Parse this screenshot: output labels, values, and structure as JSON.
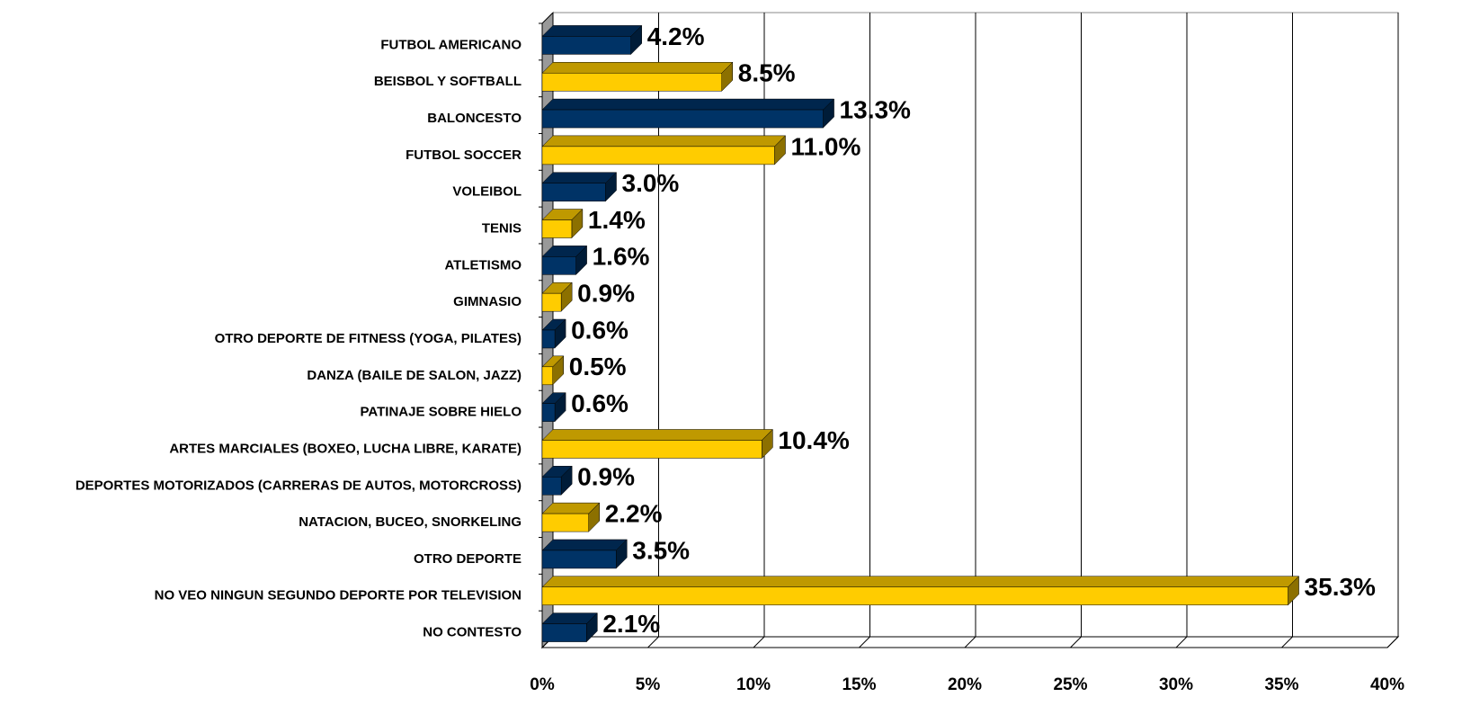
{
  "chart_data": {
    "type": "bar3d_horizontal",
    "categories": [
      "FUTBOL AMERICANO",
      "BEISBOL Y SOFTBALL",
      "BALONCESTO",
      "FUTBOL SOCCER",
      "VOLEIBOL",
      "TENIS",
      "ATLETISMO",
      "GIMNASIO",
      "OTRO DEPORTE DE FITNESS (YOGA, PILATES)",
      "DANZA (BAILE DE SALON, JAZZ)",
      "PATINAJE SOBRE HIELO",
      "ARTES MARCIALES (BOXEO, LUCHA LIBRE, KARATE)",
      "DEPORTES MOTORIZADOS (CARRERAS DE AUTOS, MOTORCROSS)",
      "NATACION, BUCEO, SNORKELING",
      "OTRO DEPORTE",
      "NO VEO NINGUN SEGUNDO DEPORTE POR TELEVISION",
      "NO CONTESTO"
    ],
    "values": [
      4.2,
      8.5,
      13.3,
      11.0,
      3.0,
      1.4,
      1.6,
      0.9,
      0.6,
      0.5,
      0.6,
      10.4,
      0.9,
      2.2,
      3.5,
      35.3,
      2.1
    ],
    "value_labels": [
      "4.2%",
      "8.5%",
      "13.3%",
      "11.0%",
      "3.0%",
      "1.4%",
      "1.6%",
      "0.9%",
      "0.6%",
      "0.5%",
      "0.6%",
      "10.4%",
      "0.9%",
      "2.2%",
      "3.5%",
      "35.3%",
      "2.1%"
    ],
    "colors": [
      "#003366",
      "#ffcc00"
    ],
    "xlim": [
      0,
      40
    ],
    "xticks": [
      {
        "value": 0,
        "label": "0%"
      },
      {
        "value": 5,
        "label": "5%"
      },
      {
        "value": 10,
        "label": "10%"
      },
      {
        "value": 15,
        "label": "15%"
      },
      {
        "value": 20,
        "label": "20%"
      },
      {
        "value": 25,
        "label": "25%"
      },
      {
        "value": 30,
        "label": "30%"
      },
      {
        "value": 35,
        "label": "35%"
      },
      {
        "value": 40,
        "label": "40%"
      }
    ],
    "grid": true
  }
}
